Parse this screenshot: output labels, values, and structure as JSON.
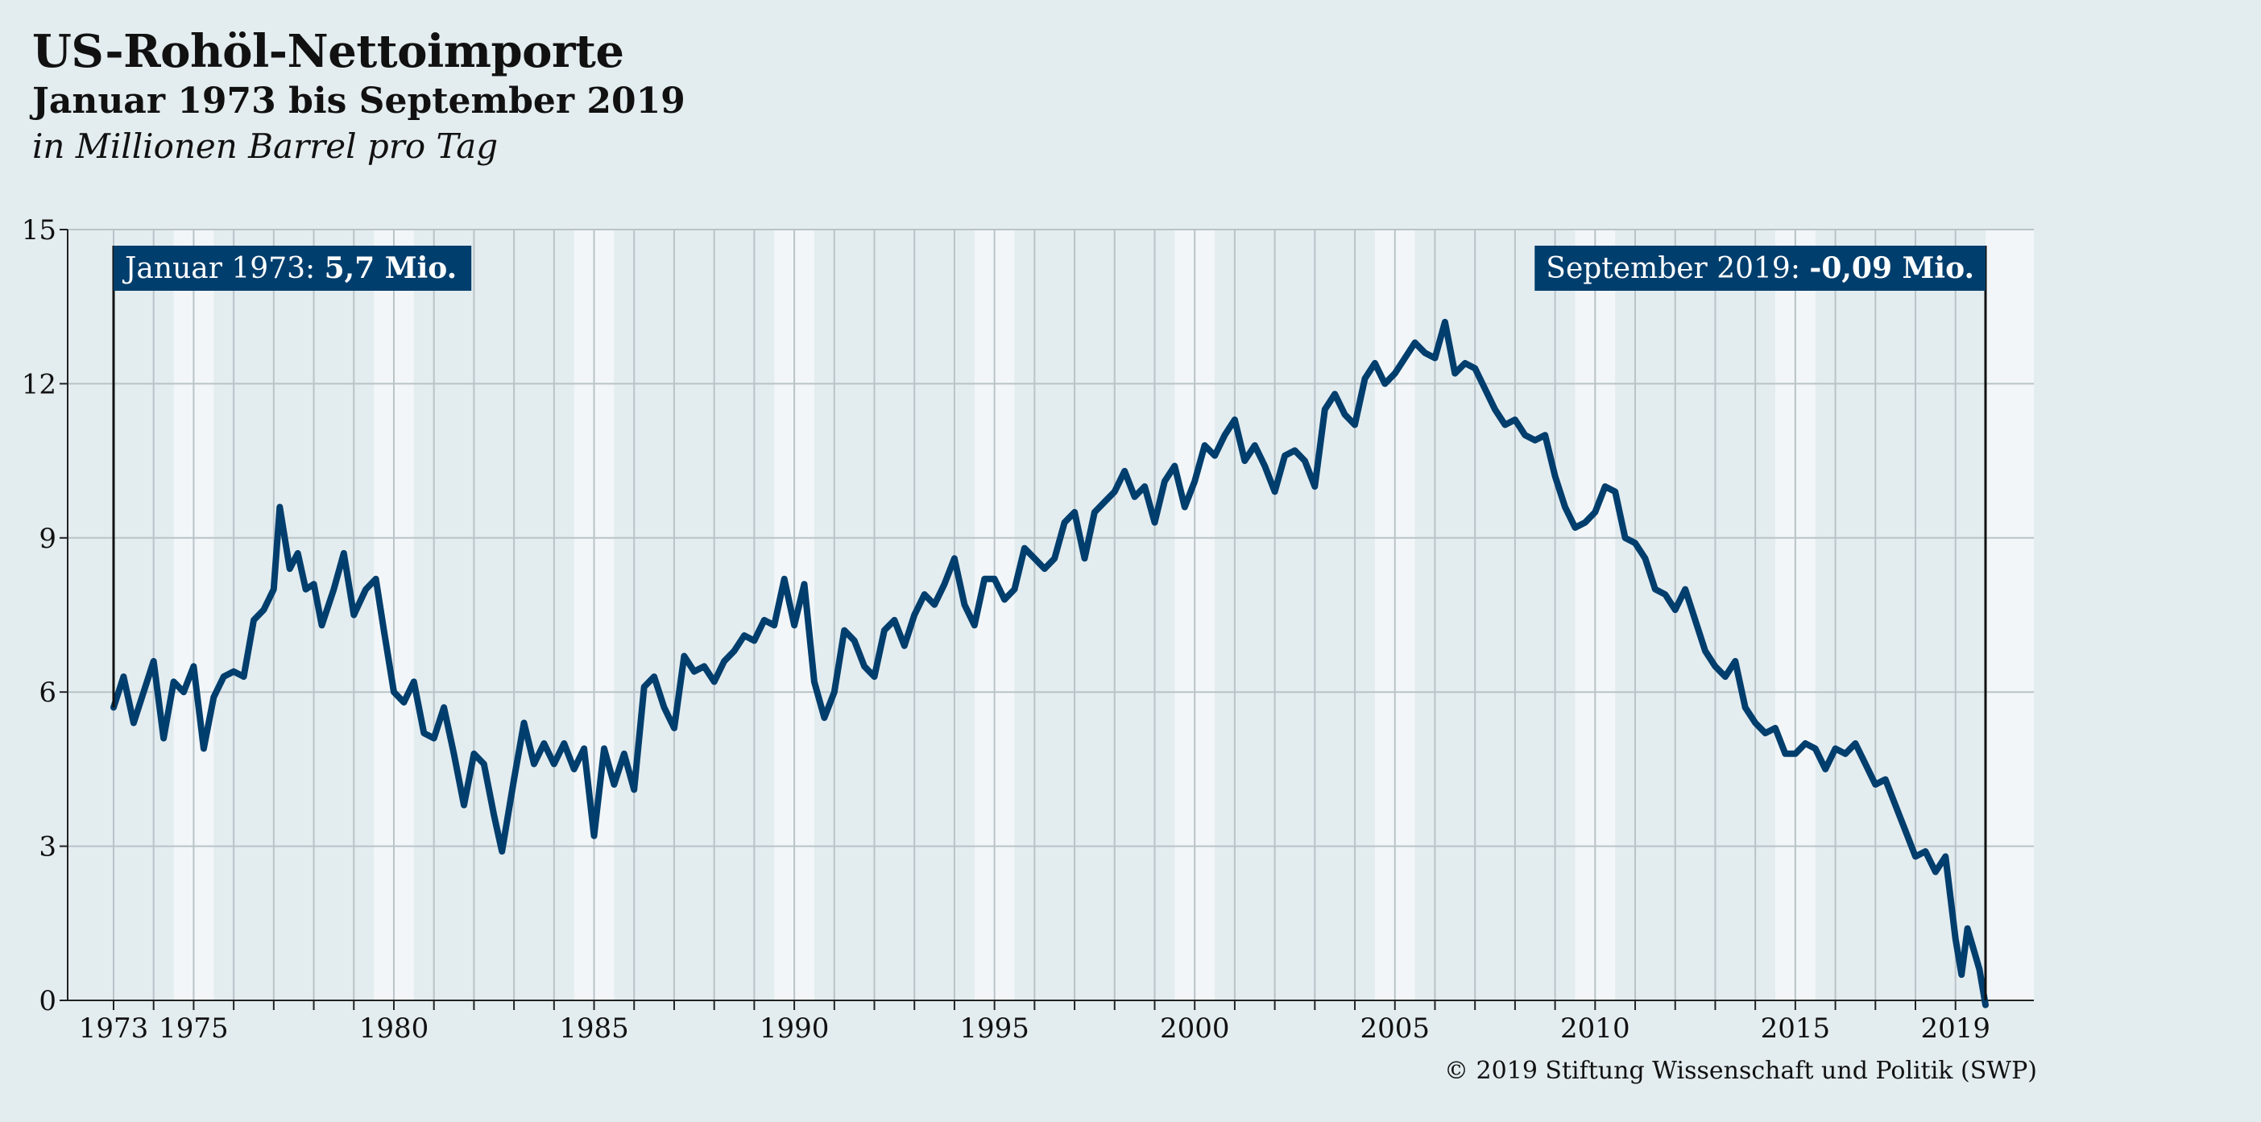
{
  "header": {
    "title": "US-Rohöl-Nettoimporte",
    "subtitle": "Januar 1973 bis September 2019",
    "unit": "in Millionen Barrel pro Tag"
  },
  "annotations": {
    "left_label": "Januar 1973: ",
    "left_value": "5,7 Mio.",
    "right_label": "September 2019: ",
    "right_value": "-0,09 Mio."
  },
  "source": "© 2019 Stiftung Wissenschaft und Politik (SWP)",
  "colors": {
    "background": "#e3ecef",
    "line": "#003e6d",
    "label_box": "#003e6d",
    "light_band": "#f2f6f8"
  },
  "chart_data": {
    "type": "line",
    "title": "US-Rohöl-Nettoimporte",
    "subtitle": "Januar 1973 bis September 2019",
    "ylabel": "in Millionen Barrel pro Tag",
    "xlabel": "",
    "ylim": [
      0,
      15
    ],
    "yticks": [
      0,
      3,
      6,
      9,
      12,
      15
    ],
    "xlim": [
      1973,
      2019.75
    ],
    "xtick_labels": [
      "1973",
      "1975",
      "1980",
      "1985",
      "1990",
      "1995",
      "2000",
      "2005",
      "2010",
      "2015",
      "2019"
    ],
    "grid": true,
    "series": [
      {
        "points": [
          [
            1973.0,
            5.7
          ],
          [
            1973.25,
            6.3
          ],
          [
            1973.5,
            5.4
          ],
          [
            1973.75,
            6.0
          ],
          [
            1974.0,
            6.6
          ],
          [
            1974.25,
            5.1
          ],
          [
            1974.5,
            6.2
          ],
          [
            1974.75,
            6.0
          ],
          [
            1975.0,
            6.5
          ],
          [
            1975.25,
            4.9
          ],
          [
            1975.5,
            5.9
          ],
          [
            1975.75,
            6.3
          ],
          [
            1976.0,
            6.4
          ],
          [
            1976.25,
            6.3
          ],
          [
            1976.5,
            7.4
          ],
          [
            1976.75,
            7.6
          ],
          [
            1977.0,
            8.0
          ],
          [
            1977.15,
            9.6
          ],
          [
            1977.4,
            8.4
          ],
          [
            1977.6,
            8.7
          ],
          [
            1977.8,
            8.0
          ],
          [
            1978.0,
            8.1
          ],
          [
            1978.2,
            7.3
          ],
          [
            1978.5,
            8.0
          ],
          [
            1978.75,
            8.7
          ],
          [
            1979.0,
            7.5
          ],
          [
            1979.3,
            8.0
          ],
          [
            1979.55,
            8.2
          ],
          [
            1979.75,
            7.2
          ],
          [
            1980.0,
            6.0
          ],
          [
            1980.25,
            5.8
          ],
          [
            1980.5,
            6.2
          ],
          [
            1980.75,
            5.2
          ],
          [
            1981.0,
            5.1
          ],
          [
            1981.25,
            5.7
          ],
          [
            1981.5,
            4.8
          ],
          [
            1981.75,
            3.8
          ],
          [
            1982.0,
            4.8
          ],
          [
            1982.25,
            4.6
          ],
          [
            1982.5,
            3.6
          ],
          [
            1982.7,
            2.9
          ],
          [
            1983.0,
            4.3
          ],
          [
            1983.25,
            5.4
          ],
          [
            1983.5,
            4.6
          ],
          [
            1983.75,
            5.0
          ],
          [
            1984.0,
            4.6
          ],
          [
            1984.25,
            5.0
          ],
          [
            1984.5,
            4.5
          ],
          [
            1984.75,
            4.9
          ],
          [
            1985.0,
            3.2
          ],
          [
            1985.25,
            4.9
          ],
          [
            1985.5,
            4.2
          ],
          [
            1985.75,
            4.8
          ],
          [
            1986.0,
            4.1
          ],
          [
            1986.25,
            6.1
          ],
          [
            1986.5,
            6.3
          ],
          [
            1986.75,
            5.7
          ],
          [
            1987.0,
            5.3
          ],
          [
            1987.25,
            6.7
          ],
          [
            1987.5,
            6.4
          ],
          [
            1987.75,
            6.5
          ],
          [
            1988.0,
            6.2
          ],
          [
            1988.25,
            6.6
          ],
          [
            1988.5,
            6.8
          ],
          [
            1988.75,
            7.1
          ],
          [
            1989.0,
            7.0
          ],
          [
            1989.25,
            7.4
          ],
          [
            1989.5,
            7.3
          ],
          [
            1989.75,
            8.2
          ],
          [
            1990.0,
            7.3
          ],
          [
            1990.25,
            8.1
          ],
          [
            1990.5,
            6.2
          ],
          [
            1990.75,
            5.5
          ],
          [
            1991.0,
            6.0
          ],
          [
            1991.25,
            7.2
          ],
          [
            1991.5,
            7.0
          ],
          [
            1991.75,
            6.5
          ],
          [
            1992.0,
            6.3
          ],
          [
            1992.25,
            7.2
          ],
          [
            1992.5,
            7.4
          ],
          [
            1992.75,
            6.9
          ],
          [
            1993.0,
            7.5
          ],
          [
            1993.25,
            7.9
          ],
          [
            1993.5,
            7.7
          ],
          [
            1993.75,
            8.1
          ],
          [
            1994.0,
            8.6
          ],
          [
            1994.25,
            7.7
          ],
          [
            1994.5,
            7.3
          ],
          [
            1994.75,
            8.2
          ],
          [
            1995.0,
            8.2
          ],
          [
            1995.25,
            7.8
          ],
          [
            1995.5,
            8.0
          ],
          [
            1995.75,
            8.8
          ],
          [
            1996.0,
            8.6
          ],
          [
            1996.25,
            8.4
          ],
          [
            1996.5,
            8.6
          ],
          [
            1996.75,
            9.3
          ],
          [
            1997.0,
            9.5
          ],
          [
            1997.25,
            8.6
          ],
          [
            1997.5,
            9.5
          ],
          [
            1997.75,
            9.7
          ],
          [
            1998.0,
            9.9
          ],
          [
            1998.25,
            10.3
          ],
          [
            1998.5,
            9.8
          ],
          [
            1998.75,
            10.0
          ],
          [
            1999.0,
            9.3
          ],
          [
            1999.25,
            10.1
          ],
          [
            1999.5,
            10.4
          ],
          [
            1999.75,
            9.6
          ],
          [
            2000.0,
            10.1
          ],
          [
            2000.25,
            10.8
          ],
          [
            2000.5,
            10.6
          ],
          [
            2000.75,
            11.0
          ],
          [
            2001.0,
            11.3
          ],
          [
            2001.25,
            10.5
          ],
          [
            2001.5,
            10.8
          ],
          [
            2001.75,
            10.4
          ],
          [
            2002.0,
            9.9
          ],
          [
            2002.25,
            10.6
          ],
          [
            2002.5,
            10.7
          ],
          [
            2002.75,
            10.5
          ],
          [
            2003.0,
            10.0
          ],
          [
            2003.25,
            11.5
          ],
          [
            2003.5,
            11.8
          ],
          [
            2003.75,
            11.4
          ],
          [
            2004.0,
            11.2
          ],
          [
            2004.25,
            12.1
          ],
          [
            2004.5,
            12.4
          ],
          [
            2004.75,
            12.0
          ],
          [
            2005.0,
            12.2
          ],
          [
            2005.25,
            12.5
          ],
          [
            2005.5,
            12.8
          ],
          [
            2005.75,
            12.6
          ],
          [
            2006.0,
            12.5
          ],
          [
            2006.25,
            13.2
          ],
          [
            2006.5,
            12.2
          ],
          [
            2006.75,
            12.4
          ],
          [
            2007.0,
            12.3
          ],
          [
            2007.25,
            11.9
          ],
          [
            2007.5,
            11.5
          ],
          [
            2007.75,
            11.2
          ],
          [
            2008.0,
            11.3
          ],
          [
            2008.25,
            11.0
          ],
          [
            2008.5,
            10.9
          ],
          [
            2008.75,
            11.0
          ],
          [
            2009.0,
            10.2
          ],
          [
            2009.25,
            9.6
          ],
          [
            2009.5,
            9.2
          ],
          [
            2009.75,
            9.3
          ],
          [
            2010.0,
            9.5
          ],
          [
            2010.25,
            10.0
          ],
          [
            2010.5,
            9.9
          ],
          [
            2010.75,
            9.0
          ],
          [
            2011.0,
            8.9
          ],
          [
            2011.25,
            8.6
          ],
          [
            2011.5,
            8.0
          ],
          [
            2011.75,
            7.9
          ],
          [
            2012.0,
            7.6
          ],
          [
            2012.25,
            8.0
          ],
          [
            2012.5,
            7.4
          ],
          [
            2012.75,
            6.8
          ],
          [
            2013.0,
            6.5
          ],
          [
            2013.25,
            6.3
          ],
          [
            2013.5,
            6.6
          ],
          [
            2013.75,
            5.7
          ],
          [
            2014.0,
            5.4
          ],
          [
            2014.25,
            5.2
          ],
          [
            2014.5,
            5.3
          ],
          [
            2014.75,
            4.8
          ],
          [
            2015.0,
            4.8
          ],
          [
            2015.25,
            5.0
          ],
          [
            2015.5,
            4.9
          ],
          [
            2015.75,
            4.5
          ],
          [
            2016.0,
            4.9
          ],
          [
            2016.25,
            4.8
          ],
          [
            2016.5,
            5.0
          ],
          [
            2016.75,
            4.6
          ],
          [
            2017.0,
            4.2
          ],
          [
            2017.25,
            4.3
          ],
          [
            2017.5,
            3.8
          ],
          [
            2017.75,
            3.3
          ],
          [
            2018.0,
            2.8
          ],
          [
            2018.25,
            2.9
          ],
          [
            2018.5,
            2.5
          ],
          [
            2018.75,
            2.8
          ],
          [
            2019.0,
            1.2
          ],
          [
            2019.15,
            0.5
          ],
          [
            2019.3,
            1.4
          ],
          [
            2019.45,
            1.0
          ],
          [
            2019.6,
            0.6
          ],
          [
            2019.75,
            -0.09
          ]
        ]
      }
    ]
  }
}
